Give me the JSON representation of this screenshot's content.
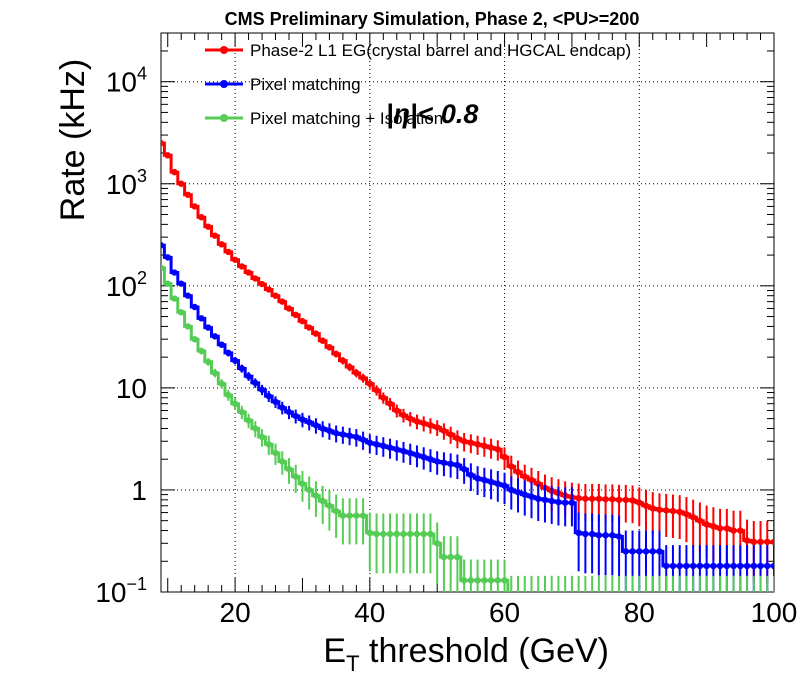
{
  "chart_data": {
    "type": "line",
    "title": "CMS Preliminary Simulation, Phase 2, <PU>=200",
    "annotation": "|η|< 0.8",
    "xlabel_main": "E",
    "xlabel_sub": "T",
    "xlabel_rest": " threshold (GeV)",
    "ylabel": "Rate (kHz)",
    "xlim": [
      9,
      100
    ],
    "ylim": [
      0.1,
      30000
    ],
    "yscale": "log",
    "grid": true,
    "legend_position": "top-left",
    "x_ticks": [
      {
        "value": 20,
        "label": "20"
      },
      {
        "value": 40,
        "label": "40"
      },
      {
        "value": 60,
        "label": "60"
      },
      {
        "value": 80,
        "label": "80"
      },
      {
        "value": 100,
        "label": "100"
      }
    ],
    "y_ticks": [
      {
        "value": 0.1,
        "base": "10",
        "exp": "−1"
      },
      {
        "value": 1,
        "base": "1",
        "exp": ""
      },
      {
        "value": 10,
        "base": "10",
        "exp": ""
      },
      {
        "value": 100,
        "base": "10",
        "exp": "2"
      },
      {
        "value": 1000,
        "base": "10",
        "exp": "3"
      },
      {
        "value": 10000,
        "base": "10",
        "exp": "4"
      }
    ],
    "series": [
      {
        "name": "Phase-2 L1 EG(crystal barrel and HGCAL endcap)",
        "color": "#ff0000",
        "points": [
          [
            9,
            2500
          ],
          [
            10,
            1900
          ],
          [
            11,
            1300
          ],
          [
            12,
            1000
          ],
          [
            13,
            780
          ],
          [
            14,
            600
          ],
          [
            15,
            470
          ],
          [
            16,
            380
          ],
          [
            17,
            310
          ],
          [
            18,
            255
          ],
          [
            19,
            215
          ],
          [
            20,
            180
          ],
          [
            21,
            155
          ],
          [
            22,
            135
          ],
          [
            23,
            118
          ],
          [
            24,
            104
          ],
          [
            25,
            92
          ],
          [
            26,
            80
          ],
          [
            27,
            70
          ],
          [
            28,
            60
          ],
          [
            29,
            52
          ],
          [
            30,
            45
          ],
          [
            31,
            39
          ],
          [
            32,
            34
          ],
          [
            33,
            29
          ],
          [
            34,
            25
          ],
          [
            35,
            21.5
          ],
          [
            36,
            18.5
          ],
          [
            37,
            16
          ],
          [
            38,
            14
          ],
          [
            39,
            12.5
          ],
          [
            40,
            11
          ],
          [
            41,
            9.5
          ],
          [
            42,
            8
          ],
          [
            43,
            7
          ],
          [
            44,
            6
          ],
          [
            45,
            5.4
          ],
          [
            46,
            5
          ],
          [
            47,
            4.7
          ],
          [
            48,
            4.5
          ],
          [
            49,
            4.3
          ],
          [
            50,
            4.1
          ],
          [
            51,
            3.8
          ],
          [
            52,
            3.5
          ],
          [
            53,
            3.2
          ],
          [
            54,
            3
          ],
          [
            55,
            2.9
          ],
          [
            56,
            2.8
          ],
          [
            57,
            2.7
          ],
          [
            58,
            2.6
          ],
          [
            59,
            2.5
          ],
          [
            60,
            2.1
          ],
          [
            61,
            1.7
          ],
          [
            62,
            1.5
          ],
          [
            63,
            1.35
          ],
          [
            64,
            1.25
          ],
          [
            65,
            1.15
          ],
          [
            66,
            1.05
          ],
          [
            67,
            0.98
          ],
          [
            68,
            0.93
          ],
          [
            69,
            0.88
          ],
          [
            70,
            0.85
          ],
          [
            71,
            0.83
          ],
          [
            72,
            0.82
          ],
          [
            73,
            0.82
          ],
          [
            74,
            0.82
          ],
          [
            75,
            0.81
          ],
          [
            76,
            0.81
          ],
          [
            77,
            0.8
          ],
          [
            78,
            0.8
          ],
          [
            79,
            0.79
          ],
          [
            80,
            0.75
          ],
          [
            81,
            0.7
          ],
          [
            82,
            0.66
          ],
          [
            83,
            0.64
          ],
          [
            84,
            0.63
          ],
          [
            85,
            0.62
          ],
          [
            86,
            0.61
          ],
          [
            87,
            0.58
          ],
          [
            88,
            0.54
          ],
          [
            89,
            0.5
          ],
          [
            90,
            0.46
          ],
          [
            91,
            0.44
          ],
          [
            92,
            0.42
          ],
          [
            93,
            0.42
          ],
          [
            94,
            0.4
          ],
          [
            95,
            0.4
          ],
          [
            96,
            0.32
          ],
          [
            97,
            0.31
          ],
          [
            98,
            0.31
          ],
          [
            99,
            0.31
          ],
          [
            100,
            0.31
          ]
        ]
      },
      {
        "name": "Pixel matching",
        "color": "#0000ff",
        "points": [
          [
            9,
            250
          ],
          [
            10,
            190
          ],
          [
            11,
            135
          ],
          [
            12,
            105
          ],
          [
            13,
            80
          ],
          [
            14,
            62
          ],
          [
            15,
            48
          ],
          [
            16,
            39
          ],
          [
            17,
            32
          ],
          [
            18,
            26.5
          ],
          [
            19,
            22
          ],
          [
            20,
            18.5
          ],
          [
            21,
            15.5
          ],
          [
            22,
            13
          ],
          [
            23,
            11.2
          ],
          [
            24,
            9.6
          ],
          [
            25,
            8.3
          ],
          [
            26,
            7.3
          ],
          [
            27,
            6.4
          ],
          [
            28,
            5.8
          ],
          [
            29,
            5.3
          ],
          [
            30,
            4.9
          ],
          [
            31,
            4.6
          ],
          [
            32,
            4.3
          ],
          [
            33,
            4
          ],
          [
            34,
            3.8
          ],
          [
            35,
            3.6
          ],
          [
            36,
            3.5
          ],
          [
            37,
            3.4
          ],
          [
            38,
            3.3
          ],
          [
            39,
            3.1
          ],
          [
            40,
            2.9
          ],
          [
            41,
            2.8
          ],
          [
            42,
            2.7
          ],
          [
            43,
            2.6
          ],
          [
            44,
            2.5
          ],
          [
            45,
            2.4
          ],
          [
            46,
            2.3
          ],
          [
            47,
            2.2
          ],
          [
            48,
            2.1
          ],
          [
            49,
            2
          ],
          [
            50,
            1.9
          ],
          [
            51,
            1.85
          ],
          [
            52,
            1.8
          ],
          [
            53,
            1.75
          ],
          [
            54,
            1.6
          ],
          [
            55,
            1.4
          ],
          [
            56,
            1.3
          ],
          [
            57,
            1.25
          ],
          [
            58,
            1.2
          ],
          [
            59,
            1.15
          ],
          [
            60,
            1.1
          ],
          [
            61,
            1
          ],
          [
            62,
            0.95
          ],
          [
            63,
            0.9
          ],
          [
            64,
            0.86
          ],
          [
            65,
            0.82
          ],
          [
            66,
            0.8
          ],
          [
            67,
            0.78
          ],
          [
            68,
            0.76
          ],
          [
            69,
            0.75
          ],
          [
            70,
            0.75
          ],
          [
            71,
            0.38
          ],
          [
            72,
            0.37
          ],
          [
            73,
            0.37
          ],
          [
            74,
            0.36
          ],
          [
            75,
            0.36
          ],
          [
            76,
            0.36
          ],
          [
            77,
            0.35
          ],
          [
            78,
            0.25
          ],
          [
            79,
            0.25
          ],
          [
            80,
            0.25
          ],
          [
            81,
            0.25
          ],
          [
            82,
            0.25
          ],
          [
            83,
            0.25
          ],
          [
            84,
            0.18
          ],
          [
            85,
            0.18
          ],
          [
            86,
            0.18
          ],
          [
            87,
            0.18
          ],
          [
            88,
            0.18
          ],
          [
            89,
            0.18
          ],
          [
            90,
            0.18
          ],
          [
            91,
            0.18
          ],
          [
            92,
            0.18
          ],
          [
            93,
            0.18
          ],
          [
            94,
            0.18
          ],
          [
            95,
            0.18
          ],
          [
            96,
            0.18
          ],
          [
            97,
            0.18
          ],
          [
            98,
            0.18
          ],
          [
            99,
            0.18
          ],
          [
            100,
            0.18
          ]
        ]
      },
      {
        "name": "Pixel matching + Isolation",
        "color": "#55cc55",
        "points": [
          [
            9,
            150
          ],
          [
            10,
            105
          ],
          [
            11,
            75
          ],
          [
            12,
            55
          ],
          [
            13,
            40
          ],
          [
            14,
            30
          ],
          [
            15,
            23
          ],
          [
            16,
            18
          ],
          [
            17,
            14
          ],
          [
            18,
            11
          ],
          [
            19,
            8.5
          ],
          [
            20,
            7
          ],
          [
            21,
            5.8
          ],
          [
            22,
            4.8
          ],
          [
            23,
            4
          ],
          [
            24,
            3.3
          ],
          [
            25,
            2.8
          ],
          [
            26,
            2.3
          ],
          [
            27,
            1.9
          ],
          [
            28,
            1.6
          ],
          [
            29,
            1.35
          ],
          [
            30,
            1.15
          ],
          [
            31,
            1
          ],
          [
            32,
            0.88
          ],
          [
            33,
            0.78
          ],
          [
            34,
            0.7
          ],
          [
            35,
            0.62
          ],
          [
            36,
            0.56
          ],
          [
            37,
            0.56
          ],
          [
            38,
            0.56
          ],
          [
            39,
            0.56
          ],
          [
            40,
            0.38
          ],
          [
            41,
            0.37
          ],
          [
            42,
            0.37
          ],
          [
            43,
            0.37
          ],
          [
            44,
            0.37
          ],
          [
            45,
            0.37
          ],
          [
            46,
            0.37
          ],
          [
            47,
            0.37
          ],
          [
            48,
            0.37
          ],
          [
            49,
            0.37
          ],
          [
            50,
            0.3
          ],
          [
            51,
            0.22
          ],
          [
            52,
            0.22
          ],
          [
            53,
            0.22
          ],
          [
            54,
            0.13
          ],
          [
            55,
            0.13
          ],
          [
            56,
            0.13
          ],
          [
            57,
            0.13
          ],
          [
            58,
            0.13
          ],
          [
            59,
            0.13
          ],
          [
            60,
            0.13
          ],
          [
            61,
            0.09
          ],
          [
            62,
            0.09
          ],
          [
            63,
            0.09
          ],
          [
            64,
            0.09
          ],
          [
            65,
            0.09
          ],
          [
            66,
            0.09
          ],
          [
            67,
            0.09
          ],
          [
            68,
            0.09
          ],
          [
            69,
            0.09
          ],
          [
            70,
            0.09
          ],
          [
            71,
            0.09
          ],
          [
            72,
            0.09
          ],
          [
            73,
            0.09
          ],
          [
            74,
            0.09
          ],
          [
            75,
            0.09
          ],
          [
            76,
            0.09
          ],
          [
            77,
            0.09
          ],
          [
            78,
            0.09
          ],
          [
            79,
            0.09
          ],
          [
            80,
            0.09
          ],
          [
            81,
            0.09
          ],
          [
            82,
            0.09
          ],
          [
            83,
            0.09
          ],
          [
            84,
            0.09
          ],
          [
            85,
            0.09
          ],
          [
            86,
            0.09
          ],
          [
            87,
            0.09
          ],
          [
            88,
            0.09
          ],
          [
            89,
            0.09
          ],
          [
            90,
            0.09
          ],
          [
            91,
            0.09
          ],
          [
            92,
            0.09
          ],
          [
            93,
            0.09
          ],
          [
            94,
            0.09
          ],
          [
            95,
            0.09
          ],
          [
            96,
            0.09
          ],
          [
            97,
            0.09
          ],
          [
            98,
            0.09
          ],
          [
            99,
            0.09
          ],
          [
            100,
            0.09
          ]
        ]
      }
    ]
  }
}
